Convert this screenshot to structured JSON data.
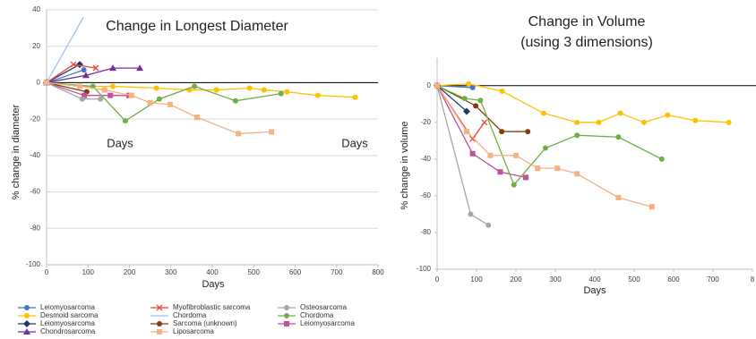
{
  "chart_data": [
    {
      "type": "line",
      "title": "Change in Longest Diameter",
      "x_label": "Days",
      "y_label": "% change in diameter",
      "annotations": [
        "Days",
        "Days"
      ],
      "xlim": [
        0,
        800
      ],
      "xticks": [
        0,
        100,
        200,
        300,
        400,
        500,
        600,
        700,
        800
      ],
      "ylim": [
        -100,
        40
      ],
      "yticks": [
        40,
        20,
        0,
        -20,
        -40,
        -60,
        -80,
        -100
      ],
      "grid": true,
      "series": [
        {
          "name": "Leiomyosarcoma",
          "color": "#4472c4",
          "marker": "circle",
          "x": [
            0,
            90
          ],
          "values": [
            0,
            7
          ]
        },
        {
          "name": "Desmoid sarcoma",
          "color": "#ffc000",
          "marker": "circle",
          "x": [
            0,
            80,
            160,
            265,
            345,
            410,
            490,
            525,
            580,
            655,
            745
          ],
          "values": [
            0,
            -2,
            -2,
            -3,
            -4,
            -4,
            -3,
            -4,
            -5,
            -7,
            -8
          ]
        },
        {
          "name": "Leiomyosarcoma",
          "color": "#1f3864",
          "marker": "diamond",
          "x": [
            0,
            80
          ],
          "values": [
            0,
            10
          ]
        },
        {
          "name": "Chondrosarcoma",
          "color": "#7030a0",
          "marker": "triangle",
          "x": [
            0,
            95,
            160,
            225
          ],
          "values": [
            0,
            4,
            8,
            8
          ]
        },
        {
          "name": "Myofibroblastic sarcoma",
          "color": "#e8453c",
          "marker": "x",
          "x": [
            0,
            65,
            119
          ],
          "values": [
            0,
            10,
            8
          ]
        },
        {
          "name": "Chordoma",
          "color": "#9dc3e6",
          "marker": "none",
          "x": [
            0,
            89
          ],
          "values": [
            0,
            36
          ]
        },
        {
          "name": "Sarcoma (unknown)",
          "color": "#843c0c",
          "marker": "circle",
          "x": [
            0,
            97
          ],
          "values": [
            0,
            -5
          ]
        },
        {
          "name": "Leiomyosarcoma",
          "color": "#c0509a",
          "marker": "square",
          "x": [
            0,
            91,
            154,
            199
          ],
          "values": [
            0,
            -7,
            -7,
            -7
          ]
        },
        {
          "name": "Osteosarcoma",
          "color": "#a5a5a5",
          "marker": "circle",
          "x": [
            0,
            86,
            130
          ],
          "values": [
            0,
            -9,
            -9
          ]
        },
        {
          "name": "Chordoma",
          "color": "#70ad47",
          "marker": "circle",
          "x": [
            0,
            112,
            190,
            272,
            357,
            456,
            566
          ],
          "values": [
            0,
            -2,
            -21,
            -9,
            -2,
            -10,
            -6
          ]
        },
        {
          "name": "Liposarcoma",
          "color": "#f4b183",
          "marker": "square",
          "x": [
            0,
            80,
            140,
            205,
            250,
            298,
            363,
            463,
            543
          ],
          "values": [
            0,
            -2,
            -4,
            -7,
            -11,
            -12,
            -19,
            -28,
            -27
          ]
        }
      ]
    },
    {
      "type": "line",
      "title": "Change in Volume",
      "subtitle": "(using 3 dimensions)",
      "x_label": "Days",
      "y_label": "% change in volume",
      "xlim": [
        0,
        800
      ],
      "xticks": [
        0,
        100,
        200,
        300,
        400,
        500,
        600,
        700,
        {
          "value": 800,
          "label": "8"
        }
      ],
      "ylim": [
        -100,
        15
      ],
      "yticks": [
        0,
        -20,
        -40,
        -60,
        -80,
        -100
      ],
      "grid": false,
      "series": [
        {
          "color": "#4472c4",
          "marker": "circle",
          "x": [
            0,
            90
          ],
          "values": [
            0,
            -1
          ]
        },
        {
          "color": "#ffc000",
          "marker": "circle",
          "x": [
            0,
            80,
            165,
            270,
            355,
            410,
            465,
            525,
            585,
            655,
            740
          ],
          "values": [
            0,
            1,
            -3,
            -15,
            -20,
            -20,
            -15,
            -20,
            -16,
            -19,
            -20
          ]
        },
        {
          "color": "#1f3864",
          "marker": "diamond",
          "x": [
            0,
            75
          ],
          "values": [
            0,
            -14
          ]
        },
        {
          "color": "#e8453c",
          "marker": "x",
          "x": [
            0,
            90,
            120
          ],
          "values": [
            0,
            -29,
            -20
          ]
        },
        {
          "color": "#843c0c",
          "marker": "circle",
          "x": [
            0,
            98,
            164,
            230
          ],
          "values": [
            0,
            -11,
            -25,
            -25
          ]
        },
        {
          "color": "#c0509a",
          "marker": "square",
          "x": [
            0,
            90,
            160,
            225
          ],
          "values": [
            0,
            -37,
            -47,
            -50
          ]
        },
        {
          "color": "#a5a5a5",
          "marker": "circle",
          "x": [
            0,
            85,
            130
          ],
          "values": [
            0,
            -70,
            -76
          ]
        },
        {
          "color": "#70ad47",
          "marker": "circle",
          "x": [
            0,
            70,
            110,
            195,
            275,
            355,
            460,
            570
          ],
          "values": [
            0,
            -7,
            -8,
            -54,
            -34,
            -27,
            -28,
            -40
          ]
        },
        {
          "color": "#f4b183",
          "marker": "square",
          "x": [
            0,
            75,
            135,
            200,
            255,
            305,
            355,
            460,
            545
          ],
          "values": [
            0,
            -25,
            -38,
            -38,
            -45,
            -45,
            -48,
            -61,
            -66
          ]
        }
      ]
    }
  ]
}
